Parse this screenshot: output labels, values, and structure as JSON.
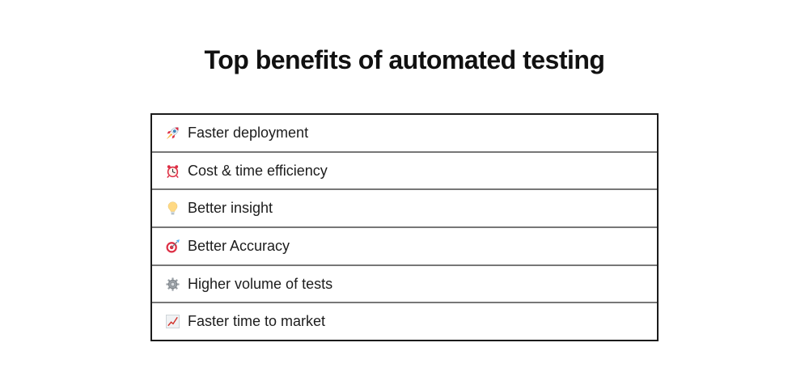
{
  "title": "Top benefits of automated testing",
  "benefits": {
    "items": [
      {
        "icon_name": "rocket",
        "emoji": "🚀",
        "label": "Faster deployment"
      },
      {
        "icon_name": "alarm-clock",
        "emoji": "⏰",
        "label": "Cost & time efficiency"
      },
      {
        "icon_name": "light-bulb",
        "emoji": "💡",
        "label": "Better insight"
      },
      {
        "icon_name": "dart-target",
        "emoji": "🎯",
        "label": "Better Accuracy"
      },
      {
        "icon_name": "gear",
        "emoji": "⚙️",
        "label": "Higher volume of tests"
      },
      {
        "icon_name": "chart-increasing",
        "emoji": "📈",
        "label": "Faster time to market"
      }
    ]
  },
  "colors": {
    "background": "#ffffff",
    "title_text": "#111111",
    "row_text": "#1c1c1c",
    "outer_border": "#1b1b1b",
    "row_divider": "#777777"
  }
}
